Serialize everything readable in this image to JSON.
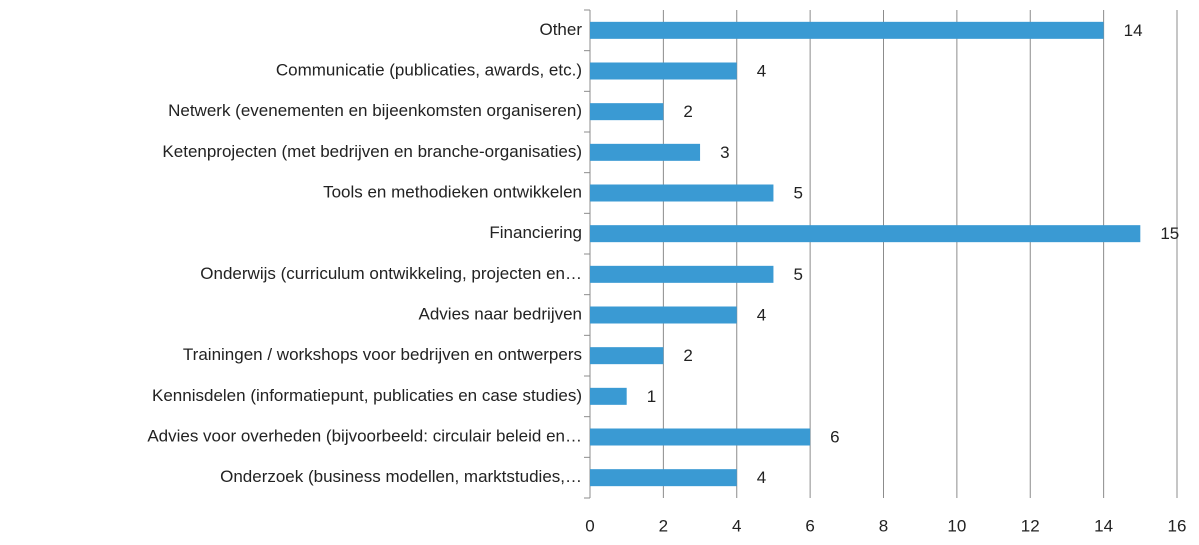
{
  "chart_data": {
    "type": "bar",
    "orientation": "horizontal",
    "categories": [
      "Other",
      "Communicatie (publicaties, awards, etc.)",
      "Netwerk (evenementen en bijeenkomsten organiseren)",
      "Ketenprojecten (met bedrijven en branche-organisaties)",
      "Tools en methodieken ontwikkelen",
      "Financiering",
      "Onderwijs (curriculum ontwikkeling, projecten en…",
      "Advies naar bedrijven",
      "Trainingen / workshops voor bedrijven en ontwerpers",
      "Kennisdelen (informatiepunt, publicaties en case studies)",
      "Advies voor overheden (bijvoorbeeld: circulair beleid en…",
      "Onderzoek (business modellen, marktstudies,…"
    ],
    "values": [
      14,
      4,
      2,
      3,
      5,
      15,
      5,
      4,
      2,
      1,
      6,
      4
    ],
    "color": "#3a9ad3",
    "xlim": [
      0,
      16
    ],
    "xticks": [
      0,
      2,
      4,
      6,
      8,
      10,
      12,
      14,
      16
    ],
    "grid": true
  }
}
